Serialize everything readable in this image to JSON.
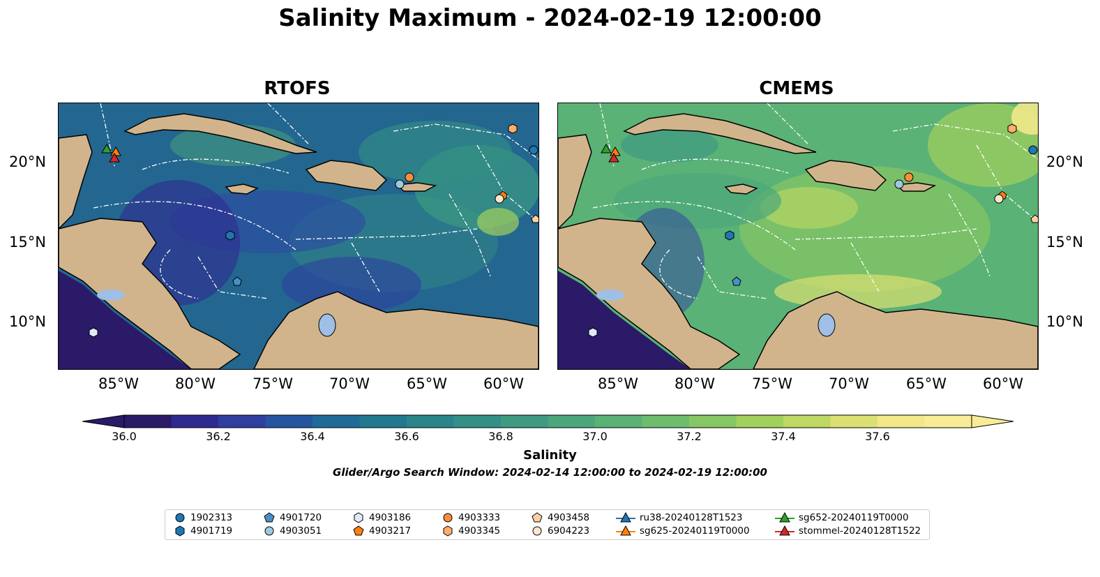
{
  "title": "Salinity Maximum - 2024-02-19 12:00:00",
  "panels": [
    {
      "title": "RTOFS"
    },
    {
      "title": "CMEMS"
    }
  ],
  "axes": {
    "lat_ticks": [
      "20°N",
      "15°N",
      "10°N"
    ],
    "lon_ticks": [
      "85°W",
      "80°W",
      "75°W",
      "70°W",
      "65°W",
      "60°W"
    ]
  },
  "colorbar": {
    "label": "Salinity",
    "ticks": [
      "36.0",
      "36.2",
      "36.4",
      "36.6",
      "36.8",
      "37.0",
      "37.2",
      "37.4",
      "37.6"
    ],
    "colors": [
      "#2a1a68",
      "#2f2a8f",
      "#2f3fa0",
      "#25559e",
      "#1f6a98",
      "#22788f",
      "#2a858a",
      "#348f86",
      "#3f9a82",
      "#4ca67c",
      "#5ab276",
      "#6dbd6d",
      "#86c664",
      "#a2d05d",
      "#bfd863",
      "#dbe072",
      "#f2e889",
      "#f9ec97"
    ],
    "extend": "both"
  },
  "search_window": "Glider/Argo Search Window: 2024-02-14 12:00:00 to 2024-02-19 12:00:00",
  "legend": [
    {
      "label": "1902313",
      "marker": "circle",
      "color": "#1f77b4"
    },
    {
      "label": "4901719",
      "marker": "hexagon",
      "color": "#1f77b4"
    },
    {
      "label": "4901720",
      "marker": "pentagon",
      "color": "#4a90c8"
    },
    {
      "label": "4903051",
      "marker": "circle",
      "color": "#9ecae1"
    },
    {
      "label": "4903186",
      "marker": "hexagon",
      "color": "#deebf7"
    },
    {
      "label": "4903217",
      "marker": "pentagon",
      "color": "#ff7f0e"
    },
    {
      "label": "4903333",
      "marker": "circle",
      "color": "#fd8d3c"
    },
    {
      "label": "4903345",
      "marker": "hexagon",
      "color": "#fdae6b"
    },
    {
      "label": "4903458",
      "marker": "pentagon",
      "color": "#fdd0a2"
    },
    {
      "label": "6904223",
      "marker": "circle",
      "color": "#fee6ce"
    },
    {
      "label": "ru38-20240128T1523",
      "marker": "triangle-line",
      "color": "#1f77b4"
    },
    {
      "label": "sg625-20240119T0000",
      "marker": "triangle-line",
      "color": "#ff7f0e"
    },
    {
      "label": "sg652-20240119T0000",
      "marker": "triangle-line",
      "color": "#2ca02c"
    },
    {
      "label": "stommel-20240128T1522",
      "marker": "triangle-line",
      "color": "#d62728"
    }
  ],
  "map_colors": {
    "land": "#d2b48c",
    "lake": "#9fbfe6",
    "pacific": "#2a1a68"
  }
}
